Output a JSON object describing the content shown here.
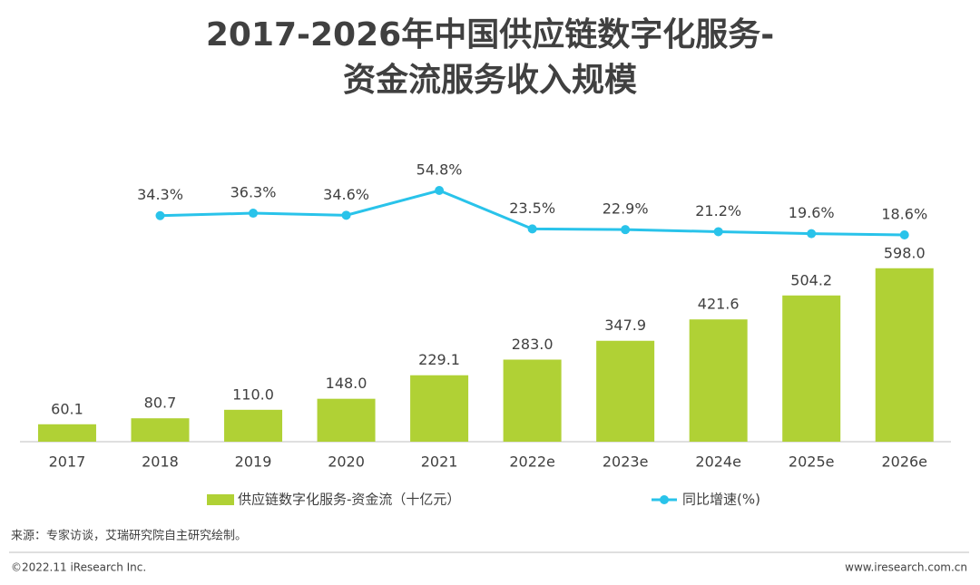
{
  "chart_data": {
    "type": "bar",
    "title": [
      "2017-2026年中国供应链数字化服务-",
      "资金流服务收入规模"
    ],
    "categories": [
      "2017",
      "2018",
      "2019",
      "2020",
      "2021",
      "2022e",
      "2023e",
      "2024e",
      "2025e",
      "2026e"
    ],
    "series": [
      {
        "name": "供应链数字化服务-资金流（十亿元）",
        "type": "bar",
        "color": "#b0d135",
        "values": [
          60.1,
          80.7,
          110.0,
          148.0,
          229.1,
          283.0,
          347.9,
          421.6,
          504.2,
          598.0
        ],
        "value_labels": [
          "60.1",
          "80.7",
          "110.0",
          "148.0",
          "229.1",
          "283.0",
          "347.9",
          "421.6",
          "504.2",
          "598.0"
        ]
      },
      {
        "name": "同比增速(%)",
        "type": "line",
        "axis": "y2",
        "color": "#29c3ea",
        "values": [
          null,
          34.3,
          36.3,
          34.6,
          54.8,
          23.5,
          22.9,
          21.2,
          19.6,
          18.6
        ],
        "value_labels": [
          null,
          "34.3%",
          "36.3%",
          "34.6%",
          "54.8%",
          "23.5%",
          "22.9%",
          "21.2%",
          "19.6%",
          "18.6%"
        ]
      }
    ],
    "ylim": [
      0,
      960
    ],
    "y2lim": [
      -150,
      77
    ],
    "legend": "bottom",
    "grid": false
  },
  "source": "来源：专家访谈，艾瑞研究院自主研究绘制。",
  "footer": {
    "left": "©2022.11 iResearch Inc.",
    "right": "www.iresearch.com.cn"
  }
}
